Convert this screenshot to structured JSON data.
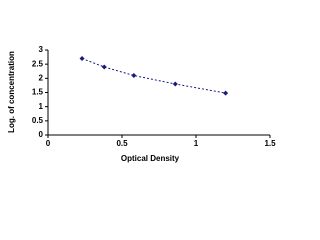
{
  "chart_data": {
    "type": "line",
    "x_label": "Optical Density",
    "y_label": "Log. of concentration",
    "x": [
      0.23,
      0.38,
      0.58,
      0.86,
      1.2
    ],
    "values": [
      2.7,
      2.4,
      2.1,
      1.8,
      1.48
    ],
    "color": "#1a1a7a",
    "line_style": "dashed",
    "marker": "diamond",
    "xlim": [
      0,
      1.5
    ],
    "xticks": [
      0,
      0.5,
      1,
      1.5
    ],
    "ylim": [
      0,
      3
    ],
    "yticks": [
      0,
      0.5,
      1,
      1.5,
      2,
      2.5,
      3
    ],
    "grid": false
  }
}
